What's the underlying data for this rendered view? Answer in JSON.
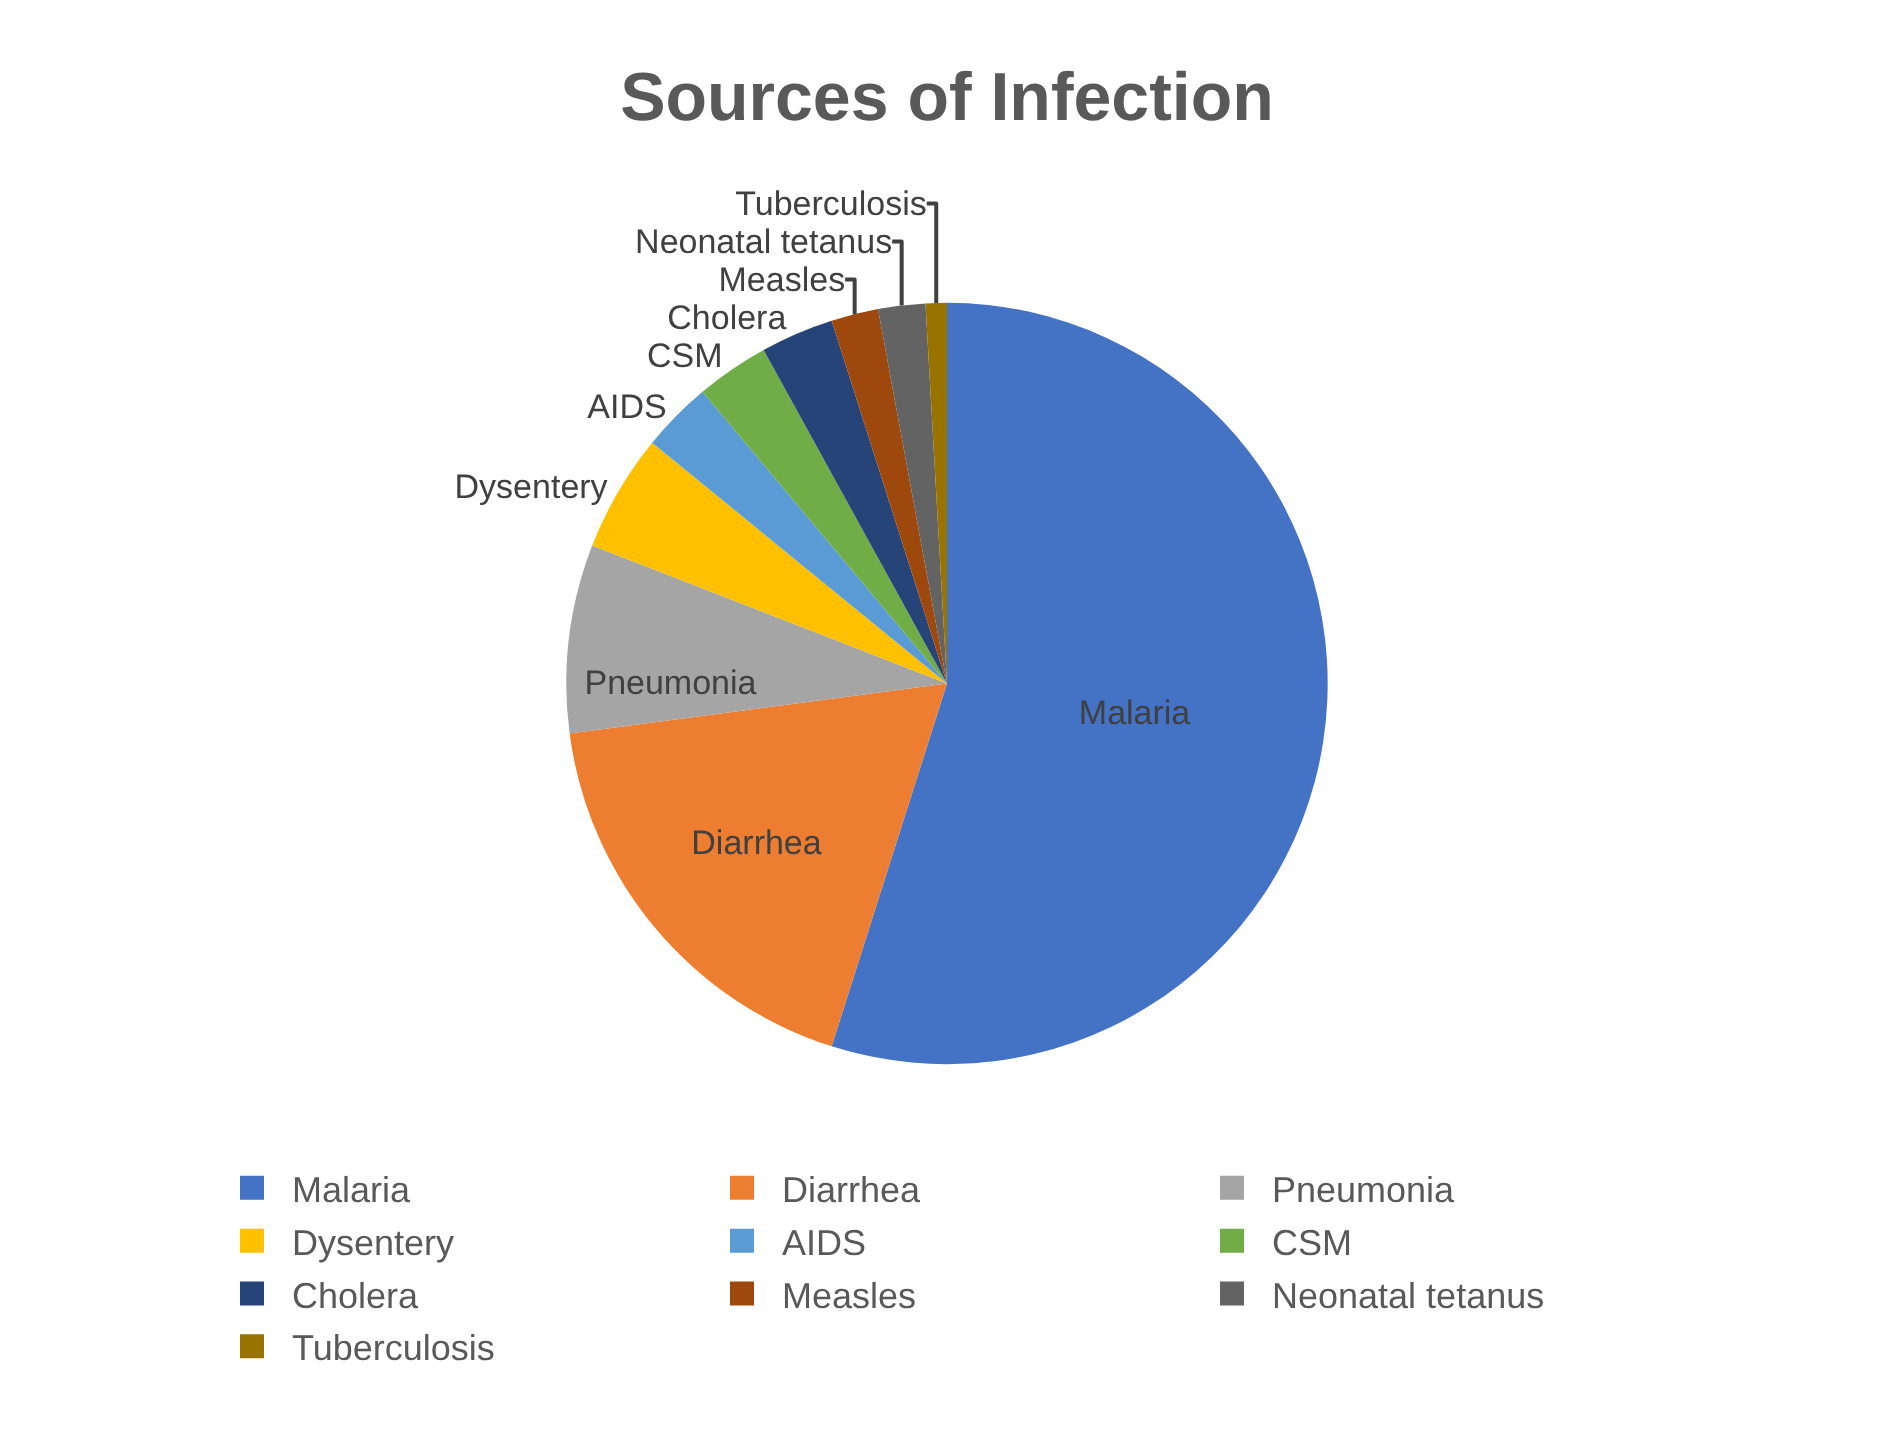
{
  "chart_data": {
    "type": "pie",
    "title": "Sources of Infection",
    "categories": [
      "Malaria",
      "Diarrhea",
      "Pneumonia",
      "Dysentery",
      "AIDS",
      "CSM",
      "Cholera",
      "Measles",
      "Neonatal tetanus",
      "Tuberculosis"
    ],
    "values": [
      54.9,
      18.0,
      8.0,
      5.0,
      3.0,
      3.1,
      3.1,
      2.0,
      2.0,
      0.9
    ],
    "colors": [
      "#4472c4",
      "#ed7d31",
      "#a5a5a5",
      "#ffc000",
      "#5b9bd5",
      "#70ad47",
      "#264478",
      "#9e480e",
      "#636363",
      "#997300"
    ],
    "legend": "bottom"
  }
}
